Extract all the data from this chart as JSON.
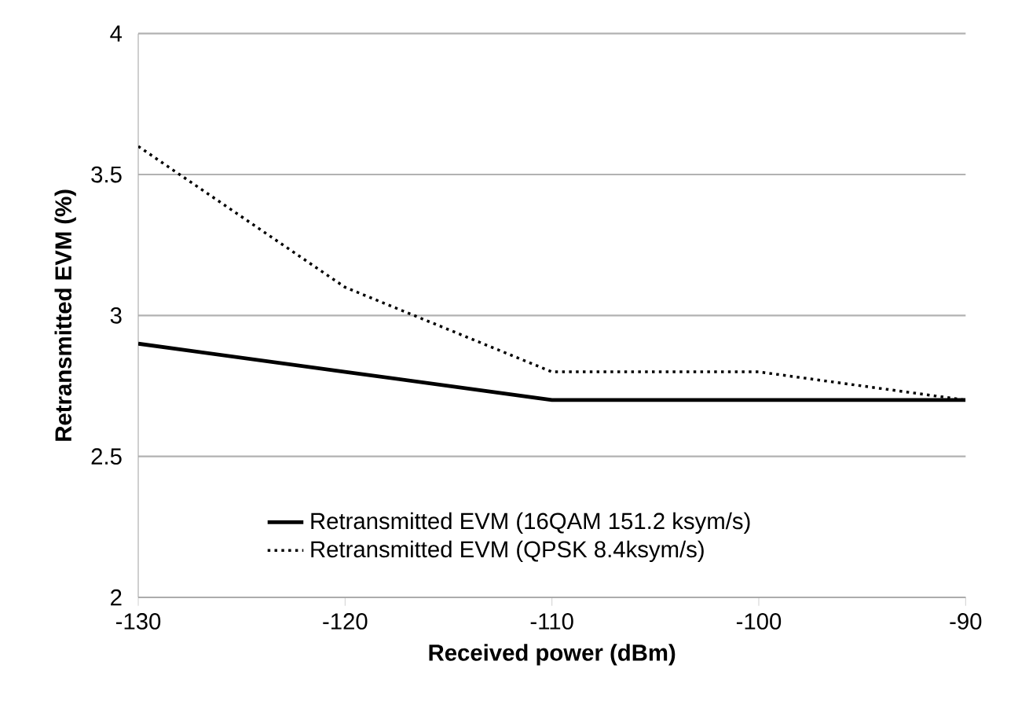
{
  "chart_data": {
    "type": "line",
    "xlabel": "Received power (dBm)",
    "ylabel": "Retransmitted EVM (%)",
    "x": [
      -130,
      -120,
      -110,
      -100,
      -90
    ],
    "series": [
      {
        "name": "Retransmitted EVM (16QAM 151.2 ksym/s)",
        "color": "#000000",
        "line_style": "solid",
        "values": [
          2.9,
          2.8,
          2.7,
          2.7,
          2.7
        ]
      },
      {
        "name": "Retransmitted EVM (QPSK 8.4ksym/s)",
        "color": "#000000",
        "line_style": "dotted",
        "values": [
          3.6,
          3.1,
          2.8,
          2.8,
          2.7
        ]
      }
    ],
    "xlim": [
      -130,
      -90
    ],
    "xticks": [
      -130,
      -120,
      -110,
      -100,
      -90
    ],
    "ylim": [
      2,
      4
    ],
    "yticks": [
      2,
      2.5,
      3,
      3.5,
      4
    ],
    "grid": "y",
    "legend": "bottom",
    "marker": "none"
  }
}
